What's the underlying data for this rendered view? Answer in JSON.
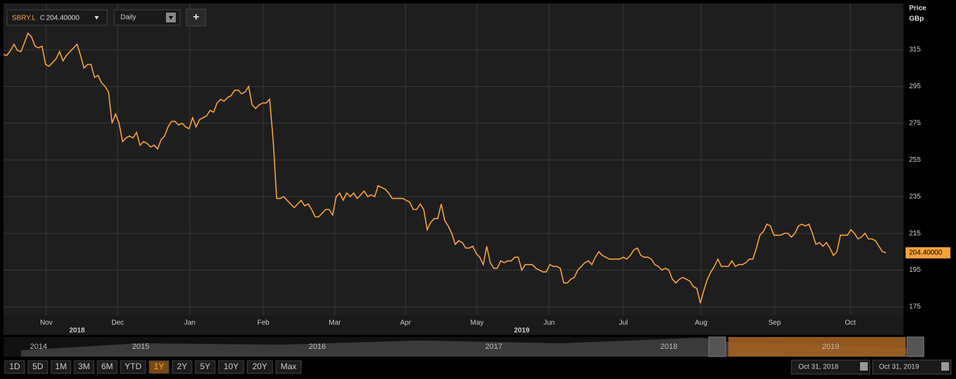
{
  "chart_data": {
    "type": "line",
    "y_axis_title": "Price",
    "y_axis_unit": "GBp",
    "last_price_label": "204.40000",
    "series": [
      {
        "name": "SBRY.L",
        "color": "#f7a23b",
        "values": [
          312.3,
          312,
          314.6,
          318,
          314.6,
          314,
          319,
          324,
          322,
          317,
          316,
          317,
          307,
          306,
          308,
          310,
          314,
          309,
          312,
          314,
          316,
          318,
          312,
          305,
          307,
          307,
          300,
          301,
          297,
          295,
          292,
          275,
          280,
          275,
          265,
          267,
          268,
          267,
          270,
          263,
          265,
          264,
          262,
          263,
          261,
          266,
          268,
          273,
          276,
          276,
          274,
          275,
          273,
          272,
          278,
          273,
          277,
          278,
          279,
          282,
          281,
          286,
          288,
          287,
          289,
          290,
          293,
          293,
          291,
          292,
          295,
          285,
          283,
          285,
          286,
          286,
          288,
          266,
          234,
          234,
          235,
          233,
          231,
          229,
          231,
          233,
          230,
          231,
          228,
          224,
          224,
          226,
          228,
          228,
          225,
          235,
          237,
          233,
          237,
          235,
          237,
          234,
          236,
          238,
          235,
          236,
          235,
          241,
          240,
          239,
          237,
          234,
          234,
          234,
          234,
          233,
          232,
          228,
          228,
          231,
          228,
          217,
          221,
          223,
          223,
          231,
          222,
          219,
          215,
          209,
          211,
          210,
          207,
          207,
          208,
          204,
          202,
          198,
          208,
          199,
          196,
          196,
          200,
          199,
          200,
          200,
          202,
          202,
          195,
          198,
          198,
          198,
          196,
          195,
          194,
          194,
          198,
          197,
          197,
          196,
          188,
          188,
          190,
          191,
          195,
          197,
          199,
          200,
          198,
          202,
          205,
          203,
          202,
          201,
          201,
          201,
          201,
          202,
          201,
          203,
          206,
          207,
          203,
          202,
          202,
          201,
          198,
          197,
          195,
          196,
          195,
          190,
          188,
          190,
          191,
          190,
          189,
          186,
          185,
          177,
          184,
          190,
          194,
          197,
          201,
          197,
          197,
          197,
          200,
          197,
          198,
          198,
          199,
          201,
          201,
          207,
          214,
          216,
          220,
          219,
          214,
          214,
          214,
          215,
          215,
          213,
          215,
          219,
          220,
          219,
          220,
          215,
          209,
          210,
          208,
          210,
          207,
          203,
          205,
          214,
          214,
          214,
          217,
          215,
          212,
          213,
          215,
          212,
          212,
          211,
          208,
          205,
          204.4
        ]
      }
    ],
    "xlim": [
      0,
      257
    ],
    "xticks": [
      {
        "value": 12.2,
        "label": "Nov"
      },
      {
        "value": 32.6,
        "label": "Dec"
      },
      {
        "value": 53.2,
        "label": "Jan"
      },
      {
        "value": 74.2,
        "label": "Feb"
      },
      {
        "value": 94.6,
        "label": "Mar"
      },
      {
        "value": 114.8,
        "label": "Apr"
      },
      {
        "value": 135.2,
        "label": "May"
      },
      {
        "value": 155.8,
        "label": "Jun"
      },
      {
        "value": 177,
        "label": "Jul"
      },
      {
        "value": 199.2,
        "label": "Aug"
      },
      {
        "value": 220.2,
        "label": "Sep"
      },
      {
        "value": 241.8,
        "label": "Oct"
      }
    ],
    "x_year_labels": [
      {
        "value": 21,
        "label": "2018"
      },
      {
        "value": 148,
        "label": "2019"
      }
    ],
    "ylim": [
      170.4,
      340.2
    ],
    "yticks": [
      175,
      195,
      215,
      235,
      255,
      275,
      295,
      315
    ],
    "grid": true
  },
  "toolbar": {
    "close_prefix": "C",
    "close_value": "204.40000",
    "interval": "Daily",
    "add": "+"
  },
  "navigator": {
    "years": [
      "2014",
      "2015",
      "2016",
      "2017",
      "2018",
      "2019"
    ]
  },
  "range_buttons": [
    "1D",
    "5D",
    "1M",
    "3M",
    "6M",
    "YTD",
    "1Y",
    "2Y",
    "5Y",
    "10Y",
    "20Y",
    "Max"
  ],
  "active_range": "1Y",
  "date_range": {
    "from": "Oct 31, 2018",
    "to": "Oct 31, 2019"
  }
}
